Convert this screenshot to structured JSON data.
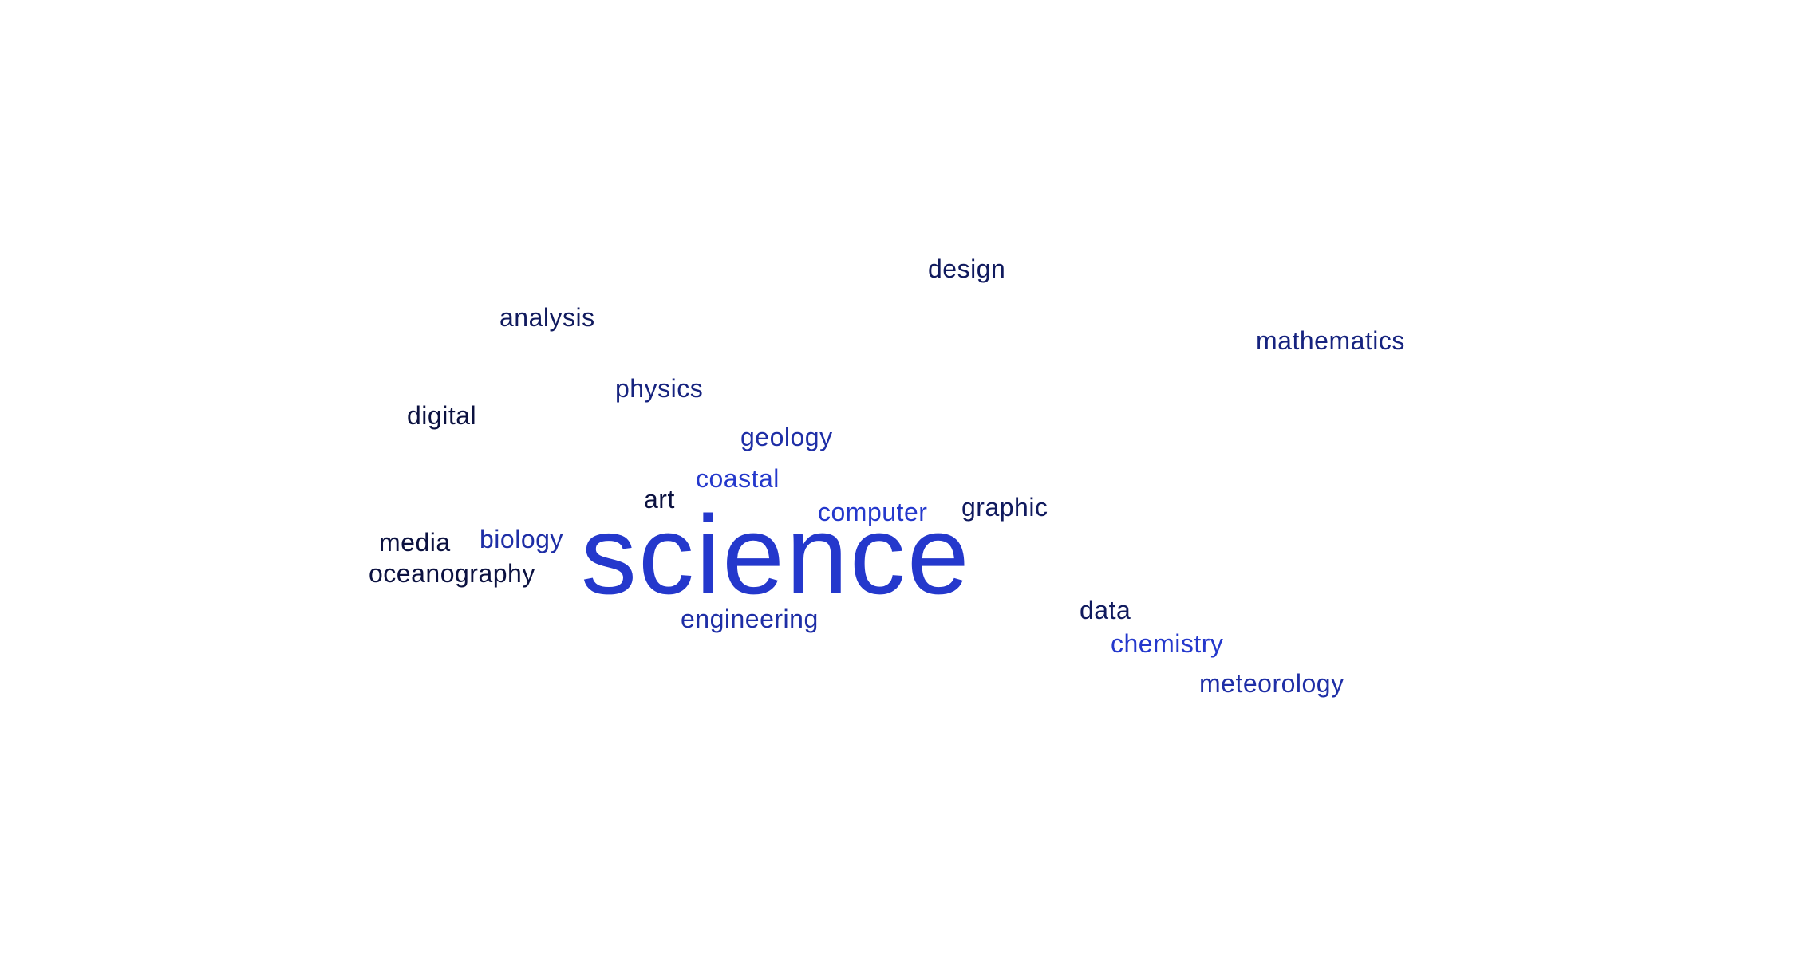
{
  "word_cloud": {
    "words": [
      {
        "id": "science",
        "text": "science",
        "color": "#2438cc"
      },
      {
        "id": "design",
        "text": "design",
        "color": "#101a5e"
      },
      {
        "id": "analysis",
        "text": "analysis",
        "color": "#101a5e"
      },
      {
        "id": "mathematics",
        "text": "mathematics",
        "color": "#16237f"
      },
      {
        "id": "physics",
        "text": "physics",
        "color": "#16237f"
      },
      {
        "id": "digital",
        "text": "digital",
        "color": "#0b1140"
      },
      {
        "id": "geology",
        "text": "geology",
        "color": "#1e2ea6"
      },
      {
        "id": "coastal",
        "text": "coastal",
        "color": "#2438cc"
      },
      {
        "id": "art",
        "text": "art",
        "color": "#0b1140"
      },
      {
        "id": "computer",
        "text": "computer",
        "color": "#2438cc"
      },
      {
        "id": "graphic",
        "text": "graphic",
        "color": "#101a5e"
      },
      {
        "id": "media",
        "text": "media",
        "color": "#0b1140"
      },
      {
        "id": "biology",
        "text": "biology",
        "color": "#1e2ea6"
      },
      {
        "id": "oceanography",
        "text": "oceanography",
        "color": "#0b1140"
      },
      {
        "id": "engineering",
        "text": "engineering",
        "color": "#1e2ea6"
      },
      {
        "id": "data",
        "text": "data",
        "color": "#101a5e"
      },
      {
        "id": "chemistry",
        "text": "chemistry",
        "color": "#2438cc"
      },
      {
        "id": "meteorology",
        "text": "meteorology",
        "color": "#1e2ea6"
      }
    ]
  }
}
